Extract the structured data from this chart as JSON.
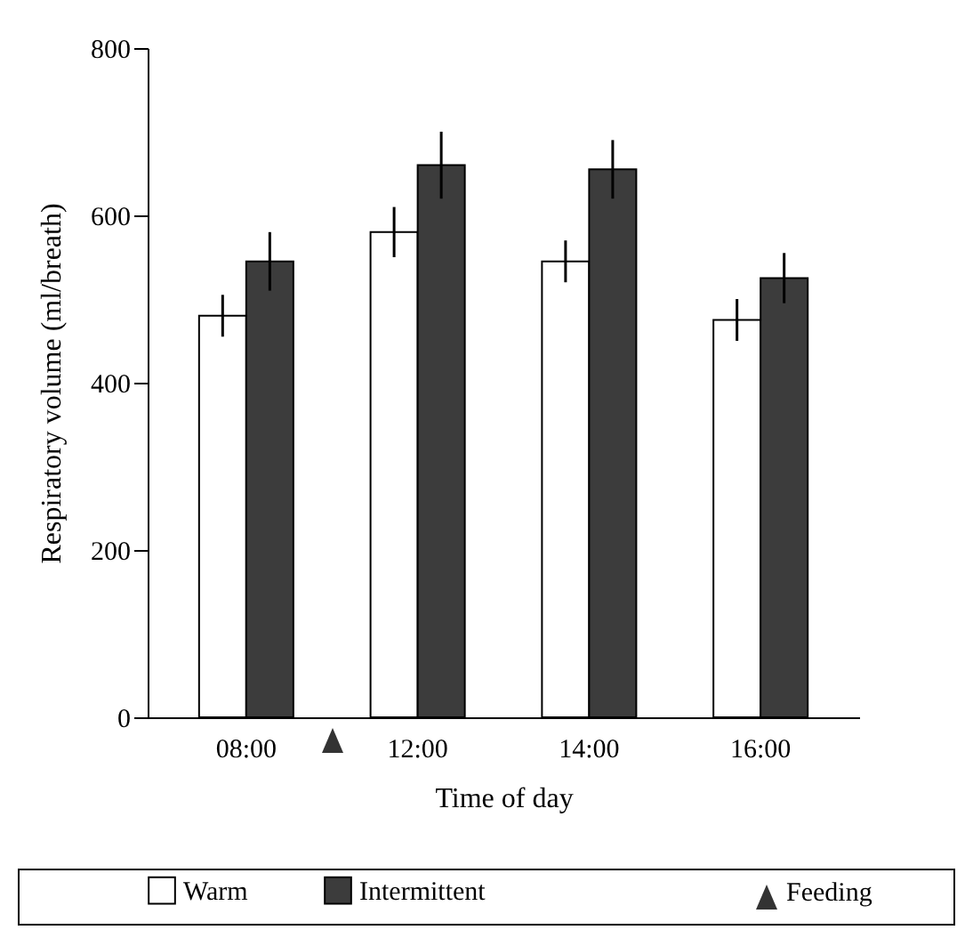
{
  "chart_data": {
    "type": "bar",
    "xlabel": "Time of day",
    "ylabel": "Respiratory volume (ml/breath)",
    "categories": [
      "08:00",
      "12:00",
      "14:00",
      "16:00"
    ],
    "series": [
      {
        "name": "Warm",
        "color": "#ffffff",
        "values": [
          480,
          580,
          545,
          475
        ],
        "errors": [
          25,
          30,
          25,
          25
        ]
      },
      {
        "name": "Intermittent",
        "color": "#3c3c3c",
        "values": [
          545,
          660,
          655,
          525
        ],
        "errors": [
          35,
          40,
          35,
          30
        ]
      }
    ],
    "ylim": [
      0,
      800
    ],
    "yticks": [
      0,
      200,
      400,
      600,
      800
    ],
    "grid": false,
    "legend": "bottom",
    "annotations": [
      "Feeding"
    ]
  }
}
